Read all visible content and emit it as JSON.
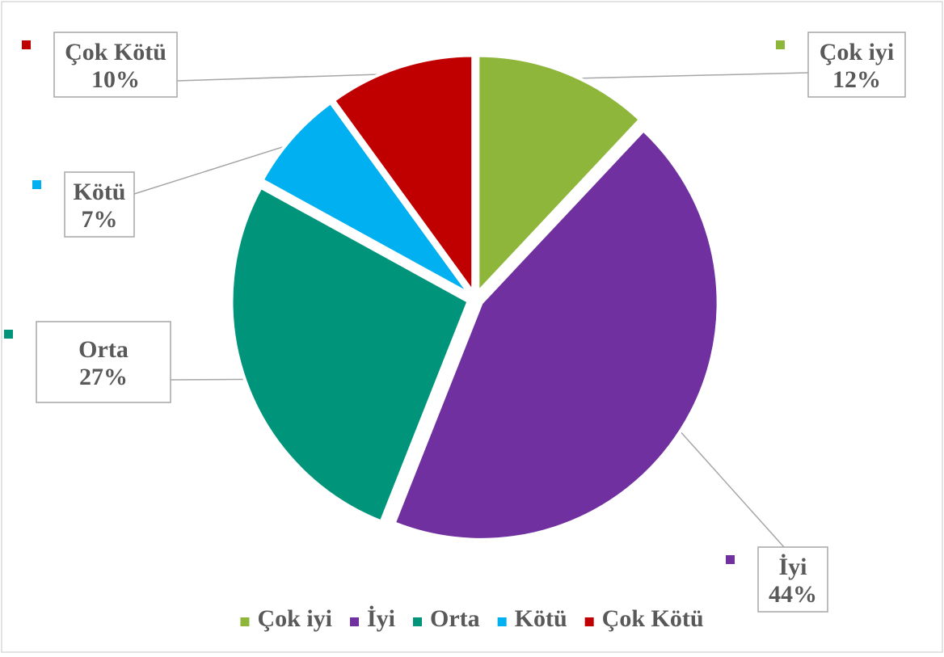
{
  "chart_data": {
    "type": "pie",
    "title": "",
    "categories": [
      "Çok iyi",
      "İyi",
      "Orta",
      "Kötü",
      "Çok Kötü"
    ],
    "values": [
      12,
      44,
      27,
      7,
      10
    ],
    "value_labels": [
      "12%",
      "44%",
      "27%",
      "7%",
      "10%"
    ],
    "colors": [
      "#8DB63A",
      "#7030A0",
      "#00957A",
      "#00B0F0",
      "#C00000"
    ],
    "start_angle_deg": 0,
    "direction": "clockwise",
    "legend": {
      "position": "bottom"
    },
    "data_labels": "outside-callout"
  }
}
